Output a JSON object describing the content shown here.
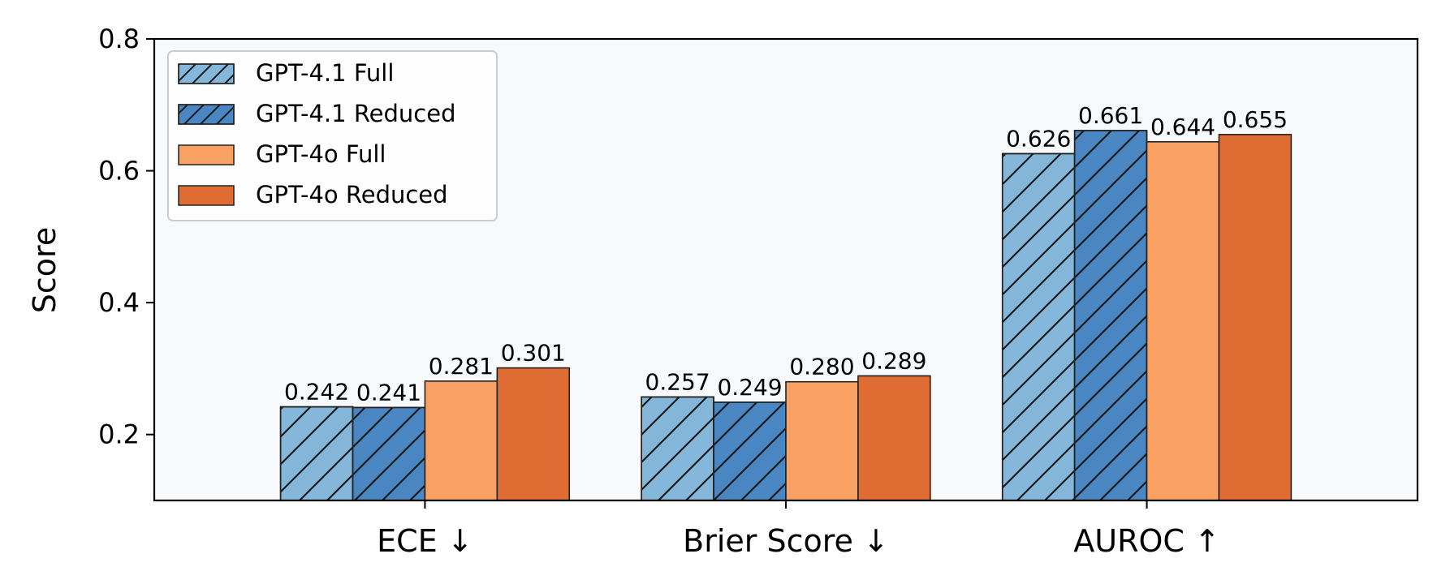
{
  "chart_data": {
    "type": "bar",
    "categories": [
      "ECE ↓",
      "Brier Score ↓",
      "AUROC ↑"
    ],
    "series": [
      {
        "name": "GPT-4.1 Full",
        "values": [
          0.242,
          0.257,
          0.626
        ],
        "color": "#85b7da",
        "hatch": true
      },
      {
        "name": "GPT-4.1 Reduced",
        "values": [
          0.241,
          0.249,
          0.661
        ],
        "color": "#4a87c2",
        "hatch": true
      },
      {
        "name": "GPT-4o Full",
        "values": [
          0.281,
          0.28,
          0.644
        ],
        "color": "#f8a163",
        "hatch": false
      },
      {
        "name": "GPT-4o Reduced",
        "values": [
          0.301,
          0.289,
          0.655
        ],
        "color": "#df6c33",
        "hatch": false
      }
    ],
    "value_labels": [
      [
        "0.242",
        "0.257",
        "0.626"
      ],
      [
        "0.241",
        "0.249",
        "0.661"
      ],
      [
        "0.281",
        "0.280",
        "0.644"
      ],
      [
        "0.301",
        "0.289",
        "0.655"
      ]
    ],
    "ylabel": "Score",
    "ylim": [
      0.1,
      0.8
    ],
    "yticks": [
      0.2,
      0.4,
      0.6,
      0.8
    ],
    "ytick_labels": [
      "0.2",
      "0.4",
      "0.6",
      "0.8"
    ],
    "legend_position": "upper-left",
    "grid": false,
    "plot_background": "#f8f9fb"
  }
}
